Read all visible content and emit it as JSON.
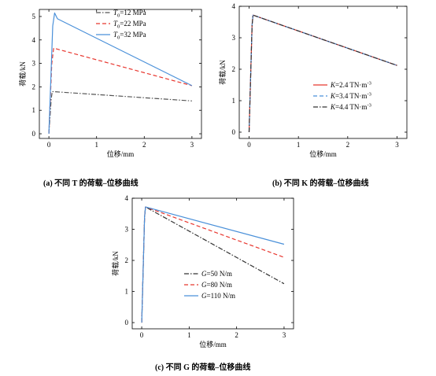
{
  "chart_data": [
    {
      "type": "line",
      "caption": "(a) 不同 T 的荷载–位移曲线",
      "xlabel": "位移/mm",
      "ylabel": "荷载/kN",
      "xlim": [
        -0.2,
        3.2
      ],
      "ylim": [
        -0.2,
        5.3
      ],
      "xticks": [
        0,
        1,
        2,
        3
      ],
      "yticks": [
        0,
        1,
        2,
        3,
        4,
        5
      ],
      "legend_position": "top-right",
      "series": [
        {
          "name": "T0=12 MPa",
          "name_parts": [
            "T",
            "0",
            "=12 MPa"
          ],
          "color": "#555555",
          "dash": "dash-dot",
          "x": [
            0,
            0.05,
            0.07,
            3.0
          ],
          "y": [
            0,
            1.5,
            1.8,
            1.4
          ]
        },
        {
          "name": "T0=22 MPa",
          "name_parts": [
            "T",
            "0",
            "=22 MPa"
          ],
          "color": "#e8372f",
          "dash": "dashed",
          "x": [
            0,
            0.06,
            0.1,
            3.0
          ],
          "y": [
            0,
            3.0,
            3.65,
            2.05
          ]
        },
        {
          "name": "T0=32 MPa",
          "name_parts": [
            "T",
            "0",
            "=32 MPa"
          ],
          "color": "#4a90d9",
          "dash": "solid",
          "x": [
            0,
            0.08,
            0.12,
            0.18,
            3.0
          ],
          "y": [
            0,
            4.6,
            5.15,
            4.9,
            2.05
          ]
        }
      ]
    },
    {
      "type": "line",
      "caption": "(b) 不同 K 的荷载–位移曲线",
      "xlabel": "位移/mm",
      "ylabel": "荷载/kN",
      "xlim": [
        -0.2,
        3.2
      ],
      "ylim": [
        -0.2,
        4.0
      ],
      "xticks": [
        0,
        1,
        2,
        3
      ],
      "yticks": [
        0,
        1,
        2,
        3,
        4
      ],
      "legend_position": "bottom-right",
      "series": [
        {
          "name": "K=2.4 TN·m-3",
          "name_parts": [
            "K",
            "=2.4 TN·m",
            "-3"
          ],
          "color": "#e8372f",
          "dash": "solid",
          "x": [
            0,
            0.06,
            0.08,
            3.0
          ],
          "y": [
            0,
            3.4,
            3.72,
            2.12
          ]
        },
        {
          "name": "K=3.4 TN·m-3",
          "name_parts": [
            "K",
            "=3.4 TN·m",
            "-3"
          ],
          "color": "#4a90d9",
          "dash": "dashed",
          "x": [
            0,
            0.06,
            0.08,
            3.0
          ],
          "y": [
            0,
            3.4,
            3.72,
            2.12
          ]
        },
        {
          "name": "K=4.4 TN·m-3",
          "name_parts": [
            "K",
            "=4.4 TN·m",
            "-3"
          ],
          "color": "#333333",
          "dash": "dash-dot",
          "x": [
            0,
            0.06,
            0.08,
            3.0
          ],
          "y": [
            0,
            3.4,
            3.72,
            2.12
          ]
        }
      ]
    },
    {
      "type": "line",
      "caption": "(c) 不同 G 的荷载–位移曲线",
      "xlabel": "位移/mm",
      "ylabel": "荷载/kN",
      "xlim": [
        -0.2,
        3.2
      ],
      "ylim": [
        -0.2,
        4.0
      ],
      "xticks": [
        0,
        1,
        2,
        3
      ],
      "yticks": [
        0,
        1,
        2,
        3,
        4
      ],
      "legend_position": "bottom-right",
      "series": [
        {
          "name": "G=50 N/m",
          "name_parts": [
            "G",
            "=50 N/m",
            ""
          ],
          "color": "#333333",
          "dash": "dash-dot",
          "x": [
            0,
            0.06,
            0.08,
            3.0
          ],
          "y": [
            0,
            3.4,
            3.72,
            1.25
          ]
        },
        {
          "name": "G=80 N/m",
          "name_parts": [
            "G",
            "=80 N/m",
            ""
          ],
          "color": "#e8372f",
          "dash": "dashed",
          "x": [
            0,
            0.06,
            0.08,
            3.0
          ],
          "y": [
            0,
            3.4,
            3.72,
            2.1
          ]
        },
        {
          "name": "G=110 N/m",
          "name_parts": [
            "G",
            "=110 N/m",
            ""
          ],
          "color": "#4a90d9",
          "dash": "solid",
          "x": [
            0,
            0.06,
            0.08,
            3.0
          ],
          "y": [
            0,
            3.4,
            3.72,
            2.52
          ]
        }
      ]
    }
  ]
}
